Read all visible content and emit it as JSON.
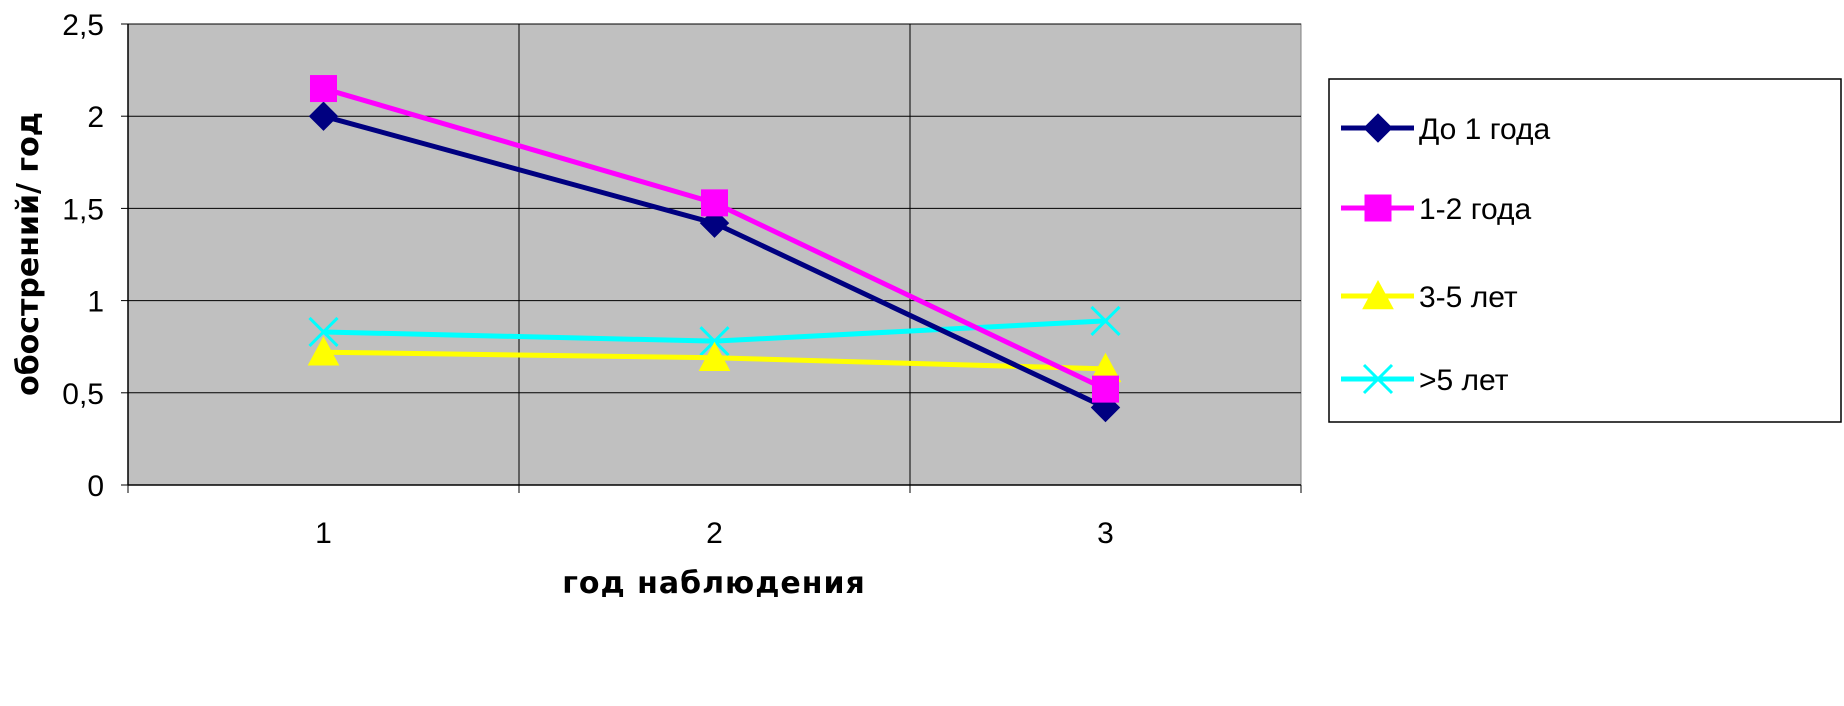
{
  "chart_data": {
    "type": "line",
    "title": "",
    "xlabel": "год наблюдения",
    "ylabel": "обострений/ год",
    "categories": [
      "1",
      "2",
      "3"
    ],
    "y_ticks": [
      "0",
      "0,5",
      "1",
      "1,5",
      "2",
      "2,5"
    ],
    "ylim": [
      0,
      2.5
    ],
    "grid": true,
    "legend_position": "right",
    "plot_background": "#c0c0c0",
    "series": [
      {
        "name": "До 1 года",
        "values": [
          2.0,
          1.42,
          0.42
        ],
        "color": "#000080",
        "marker": "diamond"
      },
      {
        "name": "1-2 года",
        "values": [
          2.15,
          1.53,
          0.52
        ],
        "color": "#ff00ff",
        "marker": "square"
      },
      {
        "name": "3-5 лет",
        "values": [
          0.72,
          0.69,
          0.63
        ],
        "color": "#ffff00",
        "marker": "triangle"
      },
      {
        "name": ">5 лет",
        "values": [
          0.83,
          0.78,
          0.89
        ],
        "color": "#00ffff",
        "marker": "x"
      }
    ]
  }
}
